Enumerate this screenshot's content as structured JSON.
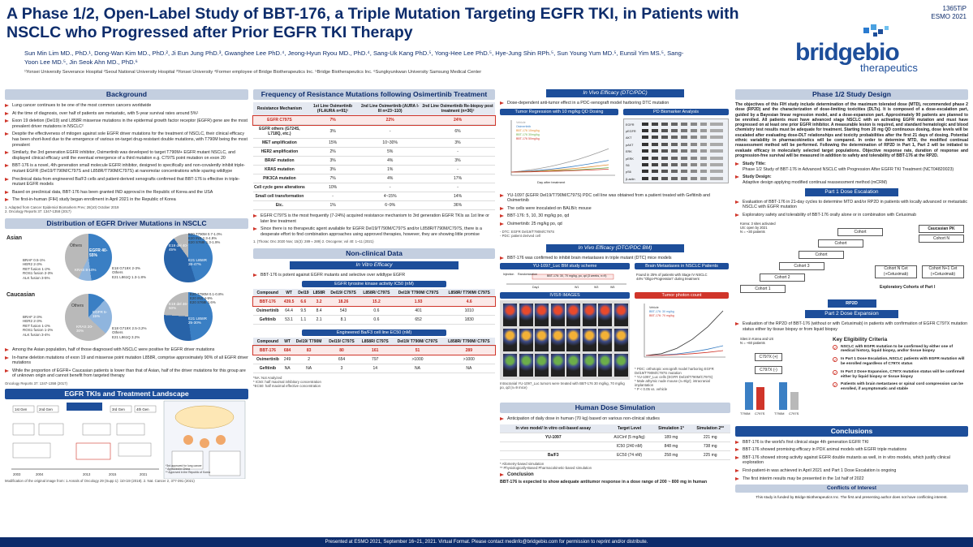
{
  "header": {
    "title": "A Phase 1/2, Open-Label Study of BBT-176, a Triple Mutation Targeting EGFR TKI, in Patients with NSCLC who Progressed after Prior EGFR TKI Therapy",
    "poster_code": "1365TiP",
    "meeting": "ESMO 2021",
    "authors": "Sun Min Lim MD., PhD.¹, Dong-Wan Kim MD., PhD.², Ji Eun Jung PhD.³, Gwanghee Lee PhD.⁴, Jeong-Hyun Ryou MD., PhD.⁴, Sang-Uk Kang PhD.⁵, Yong-Hee Lee PhD.⁵, Hye-Jung Shin RPh.⁵, Sun Young Yum MD.⁵, Eunsil Yim MS.⁵, Sang-Yoon Lee MD.⁵, Jin Seok Ahn MD., PhD.⁶",
    "affiliations": "¹Yonsei University Severance Hospital ²Seoul National University Hospital ³Yonsei University ⁴Former employee of Bridge Biotherapeutics Inc. ⁵Bridge Biotherapeutics Inc. ⁶Sungkyunkwan University Samsung Medical Center",
    "logo_word": "bridgebio",
    "logo_sub": "therapeutics"
  },
  "background": {
    "title": "Background",
    "bullets": [
      "Lung cancer continues to be one of the most common cancers worldwide",
      "At the time of diagnosis, over half of patients are metastatic, with 5-year survival rates around 5%¹",
      "Exon 19 deletion (Del19) and L858R missense mutations in the epidermal growth factor receptor (EGFR) gene are the most prevalent driver mutations in NSCLC²",
      "Despite the effectiveness of mitogen against sole EGFR driver mutations for the treatment of NSCLC, their clinical efficacy has been short-lived due to the emergence of various on-target drug-resistant double mutations, with T790M being the most prevalent",
      "Similarly, the 3rd generation EGFR inhibitor, Osimertinib was developed to target T790M+ EGFR mutant NSCLC, and displayed clinical efficacy until the eventual emergence of a third mutation e.g. C797S point mutation on exon 20",
      "BBT-176 is a novel, 4th generation small molecule EGFR inhibitor, designed to specifically and non-covalently inhibit triple-mutant EGFR (Del19/T790M/C797S and L858R/T790M/C797S) at nanomolar concentrations while sparing wildtype",
      "Preclinical data from engineered Ba/F3 cells and patient-derived xenografts confirmed that BBT-176 is effective in triple-mutant EGFR models",
      "Based on preclinical data, BBT-176 has been granted IND approval in the Republic of Korea and the USA",
      "The first-in-human (FIH) study began enrollment in April 2021 in the Republic of Korea"
    ],
    "refs": [
      "1. Adapted from Cancer Epidemiol Biomarkers Prev; 28(10) October 2019",
      "2. Oncology Reports 37: 1347-1358 (2017)"
    ]
  },
  "distribution": {
    "title": "Distribution of EGFR Driver Mutations in NSCLC",
    "asian_label": "Asian",
    "caucasian_label": "Caucasian",
    "asian_left": [
      "BRAF 0.5-1%",
      "HER2 2-3%",
      "RET fusion 1-2%",
      "ROS1 fusion 2-3%",
      "ALK fusion 3-5%"
    ],
    "asian_pie": [
      "Others",
      "EGFR 40-55%",
      "KRAS 8-10%"
    ],
    "asian_mid": [
      "E18 G719X 2-3%",
      "Others",
      "E21 L861Q 1.3-1.8%"
    ],
    "asian_egfr": [
      "E19 del 40-45%",
      "E21 L858R 38-47%"
    ],
    "asian_right": [
      "E20 T790M 0.7-1.0%",
      "E20 INS 2.3-4.9%",
      "E20 S768I 1.3-1.9%"
    ],
    "cauc_left": [
      "BRAF 2-3%",
      "HER2 2-3%",
      "RET fusion 1-2%",
      "ROS1 fusion 1-2%",
      "ALK fusion 3-4%"
    ],
    "cauc_pie": [
      "Others",
      "EGFR 5-15%",
      "KRAS 20-30%"
    ],
    "cauc_mid": [
      "E18 G719X 2.5-3.2%",
      "Others",
      "E21 L861Q 3.2%"
    ],
    "cauc_egfr": [
      "E19 del 46-50%",
      "E21 L858R 25-30%"
    ],
    "cauc_right": [
      "E20 T790M 0.1-0.8%",
      "E20 INS 4-9%",
      "E20 S768I 1.6%"
    ],
    "bullets": [
      "Among the Asian population, half of those diagnosed with NSCLC were positive for EGFR driver mutations",
      "In-frame deletion mutations of exon 19 and missense point mutation L858R, comprise approximately 90% of all EGFR driver mutations",
      "While the proportion of EGFR+ Caucasian patients is lower than that of Asian, half of the driver mutations for this group are of unknown origin and cannot benefit from targeted therapy"
    ],
    "ref": "Oncology Reports 37: 1347-1358 (2017)"
  },
  "landscape": {
    "title": "EGFR TKIs and Treatment Landscape",
    "ref": "Modification of the original image from: 1.Annals of Oncology 29 (Supp 1): i10-i19 (2018). 2. Nat. Cancer 2, 377-391 (2021)",
    "legend": [
      "*3rd approved for lung cancer",
      "* Approved in China",
      "** Approved in the Republic of Korea"
    ],
    "gen_labels": [
      "1st Gen",
      "2nd Gen",
      "3rd Gen",
      "4th Gen"
    ],
    "years": [
      "2003",
      "2004",
      "2013",
      "2015",
      "2021"
    ]
  },
  "freq": {
    "title": "Frequency of Resistance Mutations following Osimertinib Treatment",
    "headers": [
      "Resistance Mechanism",
      "1st Line Osimertinib (FLAURA n=91)¹",
      "2nd Line Osimertinib (AURA I-III n=23~110)",
      "2nd Line Osimertinib Re-biopsy post treatment (n=36)²"
    ],
    "rows": [
      [
        "EGFR C797S",
        "7%",
        "22%",
        "24%"
      ],
      [
        "EGFR others (G724S, L718Q, etc.)",
        "3%",
        "-",
        "6%"
      ],
      [
        "MET amplification",
        "15%",
        "10~30%",
        "3%"
      ],
      [
        "HER2 amplification",
        "2%",
        "5%",
        "-"
      ],
      [
        "BRAF mutation",
        "3%",
        "4%",
        "3%"
      ],
      [
        "KRAS mutation",
        "3%",
        "1%",
        "-"
      ],
      [
        "PIK3CA mutation",
        "7%",
        "4%",
        "17%"
      ],
      [
        "Cell cycle gene alterations",
        "10%",
        "-",
        "-"
      ],
      [
        "Small cell transformation",
        "-",
        "4~15%",
        "14%"
      ],
      [
        "Etc.",
        "1%",
        "6~9%",
        "36%"
      ]
    ],
    "bullets": [
      "EGFR C797S is the most frequently (7-24%) acquired resistance mechanism to 3rd generation EGFR TKIs as 1st line or later line treatment",
      "Since there is no therapeutic agent available for EGFR Del19/T790M/C797S and/or L858R/T790M/C797S, there is a desperate effort to find combination approaches using approved therapies, however, they are showing little promise"
    ],
    "refs": "1. (Thorac Onc 2020 Nov; 15(3): 289 ≈ 289)   2. Oncogene; vol 40: 1~11 (2021)"
  },
  "nonclinical": {
    "title": "Non-clinical Data",
    "sub": "In Vitro Efficacy",
    "bullet": "BBT-176 is potent against EGFR mutants and selective over wildtype EGFR",
    "t1_title": "EGFR tyrosine kinase activity IC50 (nM)",
    "t1_headers": [
      "Compound",
      "WT",
      "Del19",
      "L858R",
      "Del19/ C797S",
      "L858R/ C797S",
      "Del19/ T790M/ C797S",
      "L858R/ T790M/ C797S"
    ],
    "t1_rows": [
      [
        "BBT-176",
        "439.5",
        "6.6",
        "3.2",
        "18.26",
        "15.2",
        "1.93",
        "4.6"
      ],
      [
        "Osimertinib",
        "64.4",
        "9.5",
        "8.4",
        "543",
        "0.6",
        "401",
        "1010"
      ],
      [
        "Gefitinib",
        "53.1",
        "1.1",
        "2.1",
        "8.1",
        "0.6",
        "652",
        "1830"
      ]
    ],
    "t2_title": "Engineered Ba/F3 cell line EC50 (nM)",
    "t2_headers": [
      "Compound",
      "WT",
      "Del19/ T790M",
      "Del19/ C797S",
      "L858R/ C797S",
      "Del19/ T790M/ C797S",
      "L858R/ T790M/ C797S"
    ],
    "t2_rows": [
      [
        "BBT-176",
        "684",
        "83",
        "80",
        "161",
        "51",
        "289"
      ],
      [
        "Osimertinib",
        "249",
        "2",
        "654",
        "797",
        ">1000",
        ">1000"
      ],
      [
        "Gefitinib",
        "NA",
        "NA",
        "3",
        "14",
        "NA",
        "NA"
      ]
    ],
    "notes": [
      "*NA: Not Analyzed",
      "* IC50: half maximal inhibitory concentration",
      "*EC50: half maximal effective concentration"
    ]
  },
  "invivo1": {
    "sub": "In Vivo Efficacy (DTC/PDC)",
    "bullet": "Dose-dependent anti-tumor effect in a PDC-xenograft model harboring DTC mutation",
    "chart1_title": "Tumor Regression with 10 mg/kg QD Dosing",
    "chart2_title": "PD Biomarker Analysis",
    "legend": [
      "Vehicle",
      "Osimertinib",
      "BBT-176 10mg/kg",
      "BBT-176 30mg/kg",
      "BBT-176 50mg/kg"
    ],
    "xlabel": "Day after treatment",
    "ylabel": "Relative tumor volume (%)",
    "pd_rows": [
      "EGFR",
      "pEGFR",
      "AKT",
      "pAKT",
      "ERK",
      "pERK",
      "S6",
      "pS6",
      "β-actin"
    ],
    "bullets": [
      "YU-1097 (EGFR Del19/T790M/C797S) PDC cell line was obtained from a patient treated with Gefitinib and Osimertinib",
      "The cells were inoculated on BALB/c mouse",
      "BBT-176: 5, 10, 30 mg/kg po, qd",
      "Osimertinib: 25 mg/kg po, qd"
    ],
    "note": "- DTC: EGFR Del19/T790M/C797S\n- PDC: patient derived cell"
  },
  "invivo2": {
    "sub": "In Vivo Efficacy (DTC/PDC BM)",
    "bullet": "BBT-176 was confirmed to inhibit brain metastases in triple mutant (DTC) mice models",
    "chart1_title": "YU-1097_Luc BM study scheme",
    "chart2_title": "Brain Metastases in NSCLC Patients",
    "chart3_title": "IVIS® IMAGES",
    "bm_notes": [
      "Found in 25% of patients with Stage IV NSCLC",
      "44% \"Oligo-Progression\" during treatment"
    ],
    "scheme": [
      "Injection",
      "Randomization",
      "BBT-176: 30, 70 mg/kg, po, qd (3 weeks, n=9)",
      "Day1",
      "W1",
      "W3",
      "W5"
    ],
    "lum_title": "Tumor photon count",
    "lum_legend": [
      "Vehicle",
      "BBT-176: 30 mg/kg",
      "BBT-176: 70 mg/kg"
    ],
    "caption": "Intracranial YU-1097_Luc tumors were treated with BBT-176 30 mg/kg, 70 mg/kg po, qd (n=9 mice)",
    "foot": [
      "* PDC: orthotopic xenograft model harboring EGFR Del19/T790M/C797S mutation",
      "* YU-1097_Luc cells (EGFR Del19/T790M/C797S)",
      "* Male athymic nude mouse (n=9/gr); intracranial implantation",
      "* P < 0.05 vs. vehicle"
    ]
  },
  "humandose": {
    "title": "Human Dose Simulation",
    "bullet": "Anticipation of daily dose in human (70 kg) based on various non-clinical studies",
    "headers": [
      "In vivo model/ In vitro cell-based assay",
      "Target Level",
      "Simulation 1*",
      "Simulation 2**"
    ],
    "rows": [
      [
        "YU-1097",
        "AUCinf (5 mg/kg)",
        "189 mg",
        "221 mg"
      ],
      [
        "",
        "IC50 (240 nM)",
        "848 mg",
        "738 mg"
      ],
      [
        "Ba/F3",
        "EC50 (74 nM)",
        "258 mg",
        "225 mg"
      ]
    ],
    "notes": [
      "* Allometry-based simulation",
      "** Physiologically-Based Pharmacokinetic-based simulation"
    ],
    "concl_title": "Conclusion",
    "concl": "BBT-176 is expected to show adequate antitumor response in a dose range of 200 ~ 800 mg in human"
  },
  "phase": {
    "title": "Phase 1/2 Study Design",
    "intro": "The objectives of this FIH study include determination of the maximum tolerated dose (MTD), recommended phase 2 dose (RP2D) and the characterization of dose-limiting toxicities (DLTs). It is composed of a dose-escalation part, guided by a Bayesian linear regression model, and a dose-expansion part. Approximately 90 patients are planned to be enrolled. All patients must have advanced stage NSCLC with an activating EGFR mutation and must have progressed on at least one prior EGFR inhibitor. A measurable lesion is required, and standard hematologic and blood chemistry test results must be adequate for treatment. Starting from 20 mg QD continuous dosing, dose levels will be escalated after evaluating dose-DLT relationships and toxicity probabilities after the first 21 days of dosing. Potential ethnic variability in pharmacokinetics will be compared. In order to determine MTD, the modified continual reassessment method will be performed. Following the determination of RP2D in Part 1, Part 2 will be initiated to evaluate efficacy in molecularly selected target populations. Objective response rate, duration of response and progression-free survival will be measured in addition to safety and tolerability of BBT-176 at the RP2D.",
    "study_title_label": "Study Title:",
    "study_title": "Phase 1/2 Study of BBT-176 in Advanced NSCLC with Progression After EGFR TKI Treatment (NCT04820023)",
    "study_design_label": "Study Design:",
    "study_design": "Adaptive design applying modified continual reassessment method (mCRM)",
    "part1_title": "Part 1 Dose Escalation",
    "part1_b1": "Evaluation of BBT-176 in 21-day cycles to determine MTD and/or RP2D in patients with locally advanced or metastatic NSCLC with EGFR mutation",
    "part1_b2": "Exploratory safety and tolerability of BBT-176 orally alone or in combination with Cetuximab",
    "cohort_note": "Korea: 3 sites activated\nUS: open by 2021\nN = ~30 patients",
    "cohorts": [
      "Cohort 1",
      "Cohort 2",
      "Cohort 3",
      "Cohort",
      "Cohort",
      "Cohort",
      "Caucasian PK",
      "Cohort N",
      "Cohort N Cet (+Cetuximab)",
      "Cohort N+1 Cet (+Cetuximab)",
      "Exploratory Cohorts of Part I"
    ],
    "rp2d": "RP2D",
    "part2_title": "Part 2 Dose Expansion",
    "part2_b": "Evaluation of the RP2D of BBT-176 (without or with Cetuximab) in patients with confirmation of EGFR C797X mutation status either by tissue biopsy or from liquid biopsy",
    "sites_note": "Sites in Korea and US\nN = ~60 patients",
    "expansion": [
      "C797X (+)",
      "C797X (-)"
    ],
    "bars": [
      "T790M",
      "C797S",
      "T790M",
      "C797S"
    ],
    "key_title": "Key Eligibility Criteria",
    "key_items": [
      "NSCLC with EGFR mutation to be confirmed by either one of medical history, liquid biopsy, and/or tissue biopsy",
      "In Part 1 Dose Escalation, NSCLC patients with EGFR mutation will be enrolled regardless of C797X status",
      "In Part 2 Dose Expansion, C797X mutation status will be confirmed either by liquid biopsy or tissue biopsy",
      "Patients with brain metastases or spinal cord compression can be enrolled, if asymptomatic and stable"
    ]
  },
  "conclusions": {
    "title": "Conclusions",
    "items": [
      "BBT-176 is the world's first clinical stage 4th generation EGFR TKI",
      "BBT-176 showed promising efficacy in PDX animal models with EGFR triple mutations",
      "BBT-176 showed strong activity against EGFR double mutants as well, in in vitro models, which justify clinical exploration",
      "First-patient-in was achieved in April 2021 and Part 1 Dose Escalation is ongoing",
      "The first interim results may be presented in the 1st half of 2022"
    ],
    "coi_title": "Conflicts of Interest",
    "coi": "This study is funded by Bridge Biotherapeutics Inc. The first and presenting author does not have conflicting interest."
  },
  "footer": "Presented at ESMO 2021, September 16~21, 2021. Virtual Format. Please contact medinfo@bridgebio.com for permission to reprint and/or distribute.",
  "colors": {
    "navy": "#0d2c6b",
    "blue": "#1d4e9a",
    "red": "#d0352a",
    "bar": "#c4cfe0"
  }
}
